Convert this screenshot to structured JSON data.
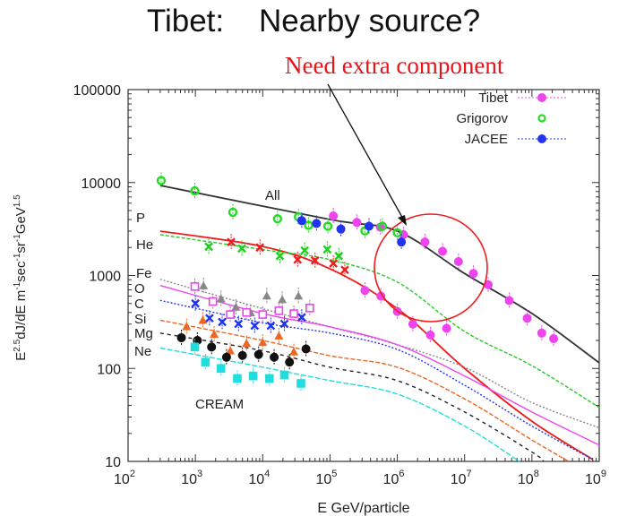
{
  "slide": {
    "title": "Tibet:    Nearby source?",
    "annotation": "Need extra component"
  },
  "chart_data": {
    "type": "scatter",
    "xscale": "log",
    "yscale": "log",
    "xlim": [
      100,
      1000000000
    ],
    "ylim": [
      10,
      100000
    ],
    "xlabel": "E GeV/particle",
    "ylabel": "E^2.5 dJ/dE m^-1 sec^-1 sr^-1 GeV^1.5",
    "xticks": [
      {
        "base": "10",
        "exp": "2"
      },
      {
        "base": "10",
        "exp": "3"
      },
      {
        "base": "10",
        "exp": "4"
      },
      {
        "base": "10",
        "exp": "5"
      },
      {
        "base": "10",
        "exp": "6"
      },
      {
        "base": "10",
        "exp": "7"
      },
      {
        "base": "10",
        "exp": "8"
      },
      {
        "base": "10",
        "exp": "9"
      }
    ],
    "yticks": [
      "100000",
      "10000",
      "1000",
      "100",
      "10"
    ],
    "legend": {
      "placement": "top-right",
      "entries": [
        "Tibet",
        "Grigorov",
        "JACEE"
      ]
    },
    "curve_labels": [
      "All",
      "P",
      "He",
      "Fe",
      "O",
      "C",
      "Si",
      "Mg",
      "Ne",
      "CREAM"
    ],
    "model_curves": [
      {
        "name": "All",
        "color": "#333333",
        "dash": "",
        "points": [
          [
            300,
            9300
          ],
          [
            100000.0,
            4000
          ],
          [
            1000000.0,
            3000
          ],
          [
            10000000.0,
            1050
          ],
          [
            100000000.0,
            390
          ],
          [
            1000000000.0,
            115
          ]
        ]
      },
      {
        "name": "P",
        "color": "#ee1c1c",
        "dash": "",
        "points": [
          [
            300,
            3000
          ],
          [
            10000.0,
            2050
          ],
          [
            100000.0,
            1180
          ],
          [
            1000000.0,
            440
          ],
          [
            10000000.0,
            100
          ],
          [
            100000000.0,
            27
          ],
          [
            800000000.0,
            10.5
          ]
        ]
      },
      {
        "name": "He",
        "color": "#22cc22",
        "dash": "4,2",
        "points": [
          [
            300,
            2750
          ],
          [
            10000.0,
            1900
          ],
          [
            100000.0,
            1480
          ],
          [
            1000000.0,
            850
          ],
          [
            10000000.0,
            250
          ],
          [
            100000000.0,
            107
          ],
          [
            1000000000.0,
            38
          ]
        ]
      },
      {
        "name": "Fe",
        "color": "#888888",
        "dash": "2,2",
        "points": [
          [
            300,
            910
          ],
          [
            10000.0,
            440
          ],
          [
            100000.0,
            280
          ],
          [
            1000000.0,
            180
          ],
          [
            10000000.0,
            103
          ],
          [
            100000000.0,
            43
          ],
          [
            1000000000.0,
            23
          ]
        ]
      },
      {
        "name": "O",
        "color": "#ee44ee",
        "dash": "",
        "points": [
          [
            300,
            780
          ],
          [
            10000.0,
            390
          ],
          [
            100000.0,
            280
          ],
          [
            1000000.0,
            180
          ],
          [
            10000000.0,
            83
          ],
          [
            100000000.0,
            34
          ],
          [
            1000000000.0,
            15
          ]
        ]
      },
      {
        "name": "C",
        "color": "#2233ee",
        "dash": "2,2",
        "points": [
          [
            300,
            540
          ],
          [
            10000.0,
            310
          ],
          [
            100000.0,
            240
          ],
          [
            1000000.0,
            160
          ],
          [
            10000000.0,
            66
          ],
          [
            100000000.0,
            24
          ],
          [
            800000000.0,
            10.5
          ]
        ]
      },
      {
        "name": "Si",
        "color": "#ee6622",
        "dash": "5,2",
        "points": [
          [
            300,
            330
          ],
          [
            10000.0,
            200
          ],
          [
            100000.0,
            137
          ],
          [
            1000000.0,
            103
          ],
          [
            10000000.0,
            47
          ],
          [
            100000000.0,
            17
          ],
          [
            350000000.0,
            10
          ]
        ]
      },
      {
        "name": "Mg",
        "color": "#222222",
        "dash": "4,4",
        "points": [
          [
            300,
            240
          ],
          [
            10000.0,
            155
          ],
          [
            100000.0,
            103
          ],
          [
            1000000.0,
            74
          ],
          [
            10000000.0,
            34
          ],
          [
            100000000.0,
            12.6
          ],
          [
            150000000.0,
            10
          ]
        ]
      },
      {
        "name": "Ne",
        "color": "#22dddd",
        "dash": "6,2",
        "points": [
          [
            300,
            166
          ],
          [
            10000.0,
            103
          ],
          [
            100000.0,
            74
          ],
          [
            1000000.0,
            53
          ],
          [
            10000000.0,
            24
          ],
          [
            65000000.0,
            10
          ]
        ]
      }
    ],
    "series": [
      {
        "name": "Tibet",
        "color": "#ee44ee",
        "marker": "dot",
        "points": [
          [
            112000.0,
            4370
          ],
          [
            250000.0,
            3720
          ],
          [
            560000.0,
            3310
          ],
          [
            1230000.0,
            2750
          ],
          [
            2570000.0,
            2290
          ],
          [
            4700000.0,
            1820
          ],
          [
            8100000.0,
            1410
          ],
          [
            13500000.0,
            1050
          ],
          [
            22400000.0,
            794
          ],
          [
            46000000.0,
            537
          ],
          [
            85000000.0,
            347
          ],
          [
            140000000.0,
            240
          ],
          [
            210000000.0,
            209
          ]
        ]
      },
      {
        "name": "Tibet P",
        "color": "#ee44ee",
        "marker": "dot",
        "points": [
          [
            330000.0,
            690
          ],
          [
            570000.0,
            600
          ],
          [
            1000000.0,
            410
          ],
          [
            1700000.0,
            300
          ],
          [
            3100000.0,
            229
          ],
          [
            5400000.0,
            270
          ]
        ]
      },
      {
        "name": "Grigorov",
        "color": "#22dd22",
        "marker": "ring",
        "points": [
          [
            310,
            10500
          ],
          [
            980,
            8130
          ],
          [
            3600,
            4790
          ],
          [
            16600.0,
            4070
          ],
          [
            34000.0,
            4270
          ],
          [
            48000.0,
            3470
          ],
          [
            93000.0,
            3390
          ],
          [
            330000.0,
            3020
          ],
          [
            600000.0,
            3390
          ],
          [
            1000000.0,
            2880
          ]
        ]
      },
      {
        "name": "JACEE",
        "color": "#2233ee",
        "marker": "dot",
        "points": [
          [
            38000.0,
            3890
          ],
          [
            63000.0,
            3630
          ],
          [
            145000.0,
            3160
          ],
          [
            380000.0,
            3390
          ],
          [
            1150000.0,
            2290
          ]
        ]
      },
      {
        "name": "CREAM P",
        "color": "#ee1c1c",
        "marker": "cross",
        "points": [
          [
            3400,
            2290
          ],
          [
            9100,
            2000
          ],
          [
            33000.0,
            1480
          ],
          [
            60000.0,
            1450
          ],
          [
            112000.0,
            1350
          ],
          [
            166000.0,
            1150
          ]
        ]
      },
      {
        "name": "CREAM He",
        "color": "#22cc22",
        "marker": "cross",
        "points": [
          [
            1580,
            2040
          ],
          [
            4900,
            1950
          ],
          [
            18000.0,
            1620
          ],
          [
            42000.0,
            1860
          ],
          [
            91000.0,
            1910
          ],
          [
            135000.0,
            1620
          ]
        ]
      },
      {
        "name": "CREAM Fe",
        "color": "#888888",
        "marker": "tri",
        "points": [
          [
            1320,
            776
          ],
          [
            2400,
            562
          ],
          [
            4000,
            457
          ],
          [
            6600,
            398
          ],
          [
            11500.0,
            603
          ],
          [
            19500.0,
            550
          ],
          [
            34000.0,
            603
          ]
        ]
      },
      {
        "name": "CREAM O",
        "color": "#ee44ee",
        "marker": "square",
        "points": [
          [
            980,
            760
          ],
          [
            1820,
            525
          ],
          [
            3300,
            380
          ],
          [
            5750,
            400
          ],
          [
            10000.0,
            380
          ],
          [
            17400.0,
            417
          ],
          [
            29000.0,
            389
          ],
          [
            50000.0,
            447
          ]
        ]
      },
      {
        "name": "CREAM C",
        "color": "#2233ee",
        "marker": "cross",
        "points": [
          [
            1000,
            500
          ],
          [
            1620,
            347
          ],
          [
            2500,
            316
          ],
          [
            4370,
            302
          ],
          [
            7600,
            288
          ],
          [
            13200.0,
            288
          ],
          [
            21000.0,
            302
          ],
          [
            38000.0,
            355
          ]
        ]
      },
      {
        "name": "CREAM Si",
        "color": "#ee6622",
        "marker": "tri",
        "points": [
          [
            740,
            282
          ],
          [
            1290,
            331
          ],
          [
            1900,
            234
          ],
          [
            3300,
            155
          ],
          [
            5750,
            186
          ],
          [
            10000.0,
            191
          ],
          [
            17400.0,
            224
          ],
          [
            29000.0,
            151
          ]
        ]
      },
      {
        "name": "CREAM Mg",
        "color": "#111111",
        "marker": "dot",
        "points": [
          [
            620,
            214
          ],
          [
            1070,
            200
          ],
          [
            1740,
            170
          ],
          [
            2900,
            132
          ],
          [
            5000,
            138
          ],
          [
            8700,
            141
          ],
          [
            14800.0,
            132
          ],
          [
            25000.0,
            117
          ],
          [
            44000.0,
            162
          ]
        ]
      },
      {
        "name": "CREAM Ne",
        "color": "#22dddd",
        "marker": "square",
        "points": [
          [
            980,
            170
          ],
          [
            1410,
            117
          ],
          [
            2400,
            100
          ],
          [
            4200,
            78
          ],
          [
            7200,
            83
          ],
          [
            12600.0,
            78
          ],
          [
            21000.0,
            85
          ],
          [
            37000.0,
            69
          ]
        ]
      }
    ]
  }
}
